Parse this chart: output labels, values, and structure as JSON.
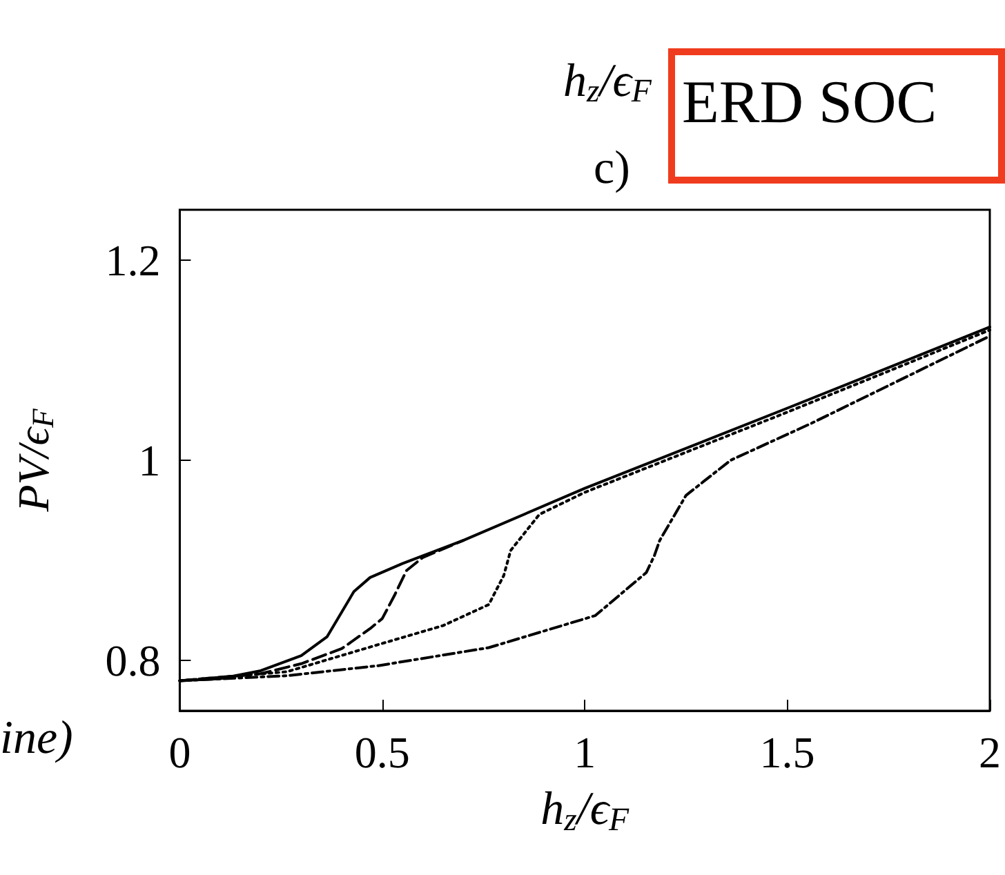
{
  "chart_data": {
    "type": "line",
    "title": "c)",
    "xlabel": "h$_{z}$/ϵ$_{F}$",
    "ylabel": "PV/ϵ$_{F}$",
    "xlim": [
      0,
      2
    ],
    "ylim": [
      0.75,
      1.25
    ],
    "xticks": [
      0,
      0.5,
      1,
      1.5,
      2
    ],
    "yticks": [
      0.8,
      1,
      1.2
    ],
    "grid": false,
    "marker": "none",
    "annotations": [
      "h$_{z}$/ϵ$_{F}$",
      "ERD SOC",
      "ine)"
    ],
    "series": [
      {
        "color": "#000000",
        "line_style": "solid",
        "x": [
          0,
          0.1,
          0.2,
          0.3,
          0.364,
          0.43,
          0.47,
          0.55,
          0.7,
          1,
          1.5,
          2
        ],
        "values": [
          0.78,
          0.782,
          0.79,
          0.805,
          0.824,
          0.869,
          0.883,
          0.897,
          0.92,
          0.972,
          1.052,
          1.133
        ]
      },
      {
        "color": "#000000",
        "line_style": "dashed",
        "x": [
          0,
          0.2,
          0.3,
          0.4,
          0.47,
          0.5,
          0.53,
          0.56,
          0.6,
          0.7
        ],
        "values": [
          0.78,
          0.787,
          0.797,
          0.812,
          0.832,
          0.842,
          0.865,
          0.89,
          0.903,
          0.92
        ]
      },
      {
        "color": "#000000",
        "line_style": "dotted",
        "x": [
          0,
          0.265,
          0.49,
          0.65,
          0.763,
          0.8,
          0.817,
          0.888,
          1,
          1.5,
          2
        ],
        "values": [
          0.78,
          0.789,
          0.816,
          0.835,
          0.856,
          0.885,
          0.91,
          0.946,
          0.968,
          1.048,
          1.13
        ]
      },
      {
        "color": "#000000",
        "line_style": "dashdot",
        "x": [
          0,
          0.265,
          0.49,
          0.763,
          1.026,
          1.152,
          1.172,
          1.185,
          1.25,
          1.36,
          1.56,
          2
        ],
        "values": [
          0.78,
          0.785,
          0.795,
          0.813,
          0.845,
          0.888,
          0.905,
          0.92,
          0.965,
          1.0,
          1.037,
          1.124
        ]
      }
    ]
  }
}
